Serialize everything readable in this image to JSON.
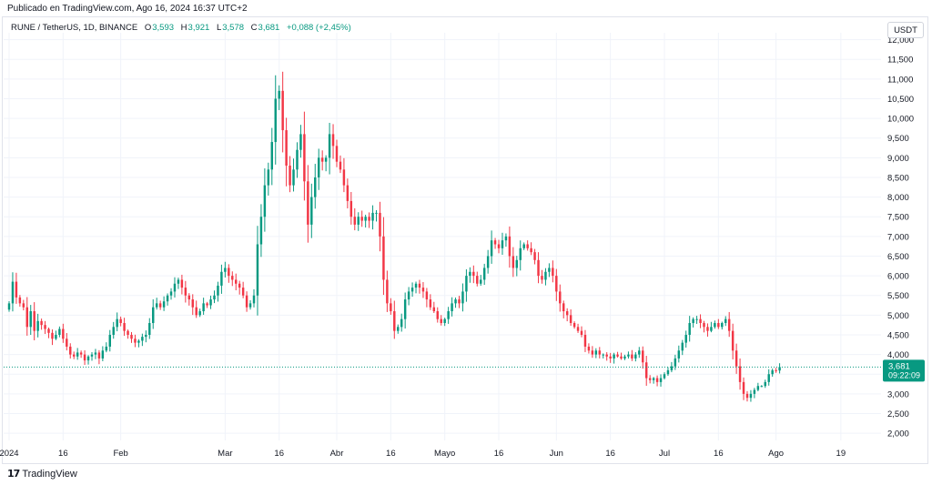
{
  "header": {
    "published": "Publicado en TradingView.com, Ago 16, 2024 16:37 UTC+2"
  },
  "legend": {
    "symbol": "RUNE / TetherUS, 1D, BINANCE",
    "o_label": "O",
    "o_value": "3,593",
    "h_label": "H",
    "h_value": "3,921",
    "l_label": "L",
    "l_value": "3,578",
    "c_label": "C",
    "c_value": "3,681",
    "change": "+0,088 (+2,45%)"
  },
  "currency_button": "USDT",
  "footer": {
    "brand": "TradingView",
    "logo_glyph": "17"
  },
  "colors": {
    "up": "#089981",
    "down": "#f23645",
    "grid": "#f0f3fa",
    "price_tag": "#089981"
  },
  "chart_data": {
    "type": "candlestick",
    "title": "",
    "ylim": [
      1800,
      12000
    ],
    "y_ticks": [
      {
        "v": 2000,
        "label": "2,000"
      },
      {
        "v": 2500,
        "label": "2,500"
      },
      {
        "v": 3000,
        "label": "3,000"
      },
      {
        "v": 3500,
        "label": "3,500"
      },
      {
        "v": 4000,
        "label": "4,000"
      },
      {
        "v": 4500,
        "label": "4,500"
      },
      {
        "v": 5000,
        "label": "5,000"
      },
      {
        "v": 5500,
        "label": "5,500"
      },
      {
        "v": 6000,
        "label": "6,000"
      },
      {
        "v": 6500,
        "label": "6,500"
      },
      {
        "v": 7000,
        "label": "7,000"
      },
      {
        "v": 7500,
        "label": "7,500"
      },
      {
        "v": 8000,
        "label": "8,000"
      },
      {
        "v": 8500,
        "label": "8,500"
      },
      {
        "v": 9000,
        "label": "9,000"
      },
      {
        "v": 9500,
        "label": "9,500"
      },
      {
        "v": 10000,
        "label": "10,000"
      },
      {
        "v": 10500,
        "label": "10,500"
      },
      {
        "v": 11000,
        "label": "11,000"
      },
      {
        "v": 11500,
        "label": "11,500"
      },
      {
        "v": 12000,
        "label": "12,000"
      }
    ],
    "x_ticks": [
      {
        "date": "2024-01-01",
        "label": "2024"
      },
      {
        "date": "2024-01-16",
        "label": "16"
      },
      {
        "date": "2024-02-01",
        "label": "Feb"
      },
      {
        "date": "2024-03-01",
        "label": "Mar"
      },
      {
        "date": "2024-03-16",
        "label": "16"
      },
      {
        "date": "2024-04-01",
        "label": "Abr"
      },
      {
        "date": "2024-04-16",
        "label": "16"
      },
      {
        "date": "2024-05-01",
        "label": "Mayo"
      },
      {
        "date": "2024-05-16",
        "label": "16"
      },
      {
        "date": "2024-06-01",
        "label": "Jun"
      },
      {
        "date": "2024-06-16",
        "label": "16"
      },
      {
        "date": "2024-07-01",
        "label": "Jul"
      },
      {
        "date": "2024-07-16",
        "label": "16"
      },
      {
        "date": "2024-08-01",
        "label": "Ago"
      },
      {
        "date": "2024-08-19",
        "label": "19"
      }
    ],
    "start_date": "2024-01-01",
    "last_price": {
      "value": 3681,
      "label": "3,681",
      "countdown": "09:22:09"
    },
    "closes": [
      5300,
      5850,
      5450,
      5300,
      5200,
      4700,
      5100,
      4600,
      4850,
      4750,
      4650,
      4550,
      4400,
      4500,
      4650,
      4400,
      4200,
      4000,
      3950,
      4050,
      4000,
      3850,
      3950,
      4000,
      4050,
      3900,
      4100,
      4200,
      4500,
      4700,
      4900,
      4800,
      4600,
      4500,
      4400,
      4300,
      4350,
      4450,
      4500,
      4800,
      5200,
      5300,
      5200,
      5350,
      5500,
      5600,
      5800,
      5900,
      5700,
      5500,
      5400,
      5200,
      5000,
      5100,
      5300,
      5250,
      5400,
      5500,
      5750,
      6100,
      6200,
      6000,
      5900,
      5800,
      5700,
      5500,
      5200,
      5300,
      5500,
      6800,
      7500,
      8300,
      8700,
      9400,
      10500,
      10700,
      9700,
      8800,
      8300,
      8700,
      9200,
      9600,
      8400,
      7300,
      8000,
      8500,
      9000,
      8900,
      9000,
      9600,
      9300,
      8900,
      8700,
      8300,
      7900,
      7500,
      7300,
      7500,
      7400,
      7500,
      7400,
      7600,
      7600,
      7000,
      5900,
      5300,
      5100,
      4600,
      4700,
      4900,
      5400,
      5600,
      5700,
      5800,
      5700,
      5600,
      5400,
      5200,
      5100,
      4900,
      4800,
      4900,
      5100,
      5300,
      5400,
      5300,
      5600,
      6000,
      6100,
      6000,
      5800,
      5900,
      6200,
      6500,
      6900,
      6800,
      6700,
      6900,
      7000,
      6500,
      6200,
      6400,
      6700,
      6800,
      6700,
      6600,
      6400,
      6000,
      5900,
      6100,
      6200,
      6000,
      5600,
      5300,
      5100,
      5000,
      4800,
      4700,
      4600,
      4500,
      4200,
      4100,
      4000,
      4100,
      4000,
      4000,
      3950,
      3900,
      4000,
      3950,
      3900,
      3950,
      4000,
      3900,
      4000,
      4100,
      3800,
      3400,
      3350,
      3400,
      3300,
      3400,
      3500,
      3600,
      3700,
      3900,
      4100,
      4300,
      4500,
      4800,
      4900,
      4900,
      4800,
      4700,
      4600,
      4700,
      4800,
      4700,
      4800,
      4900,
      4600,
      4100,
      3700,
      3300,
      3000,
      2900,
      3000,
      3100,
      3200,
      3200,
      3300,
      3500,
      3600,
      3593,
      3681
    ]
  }
}
